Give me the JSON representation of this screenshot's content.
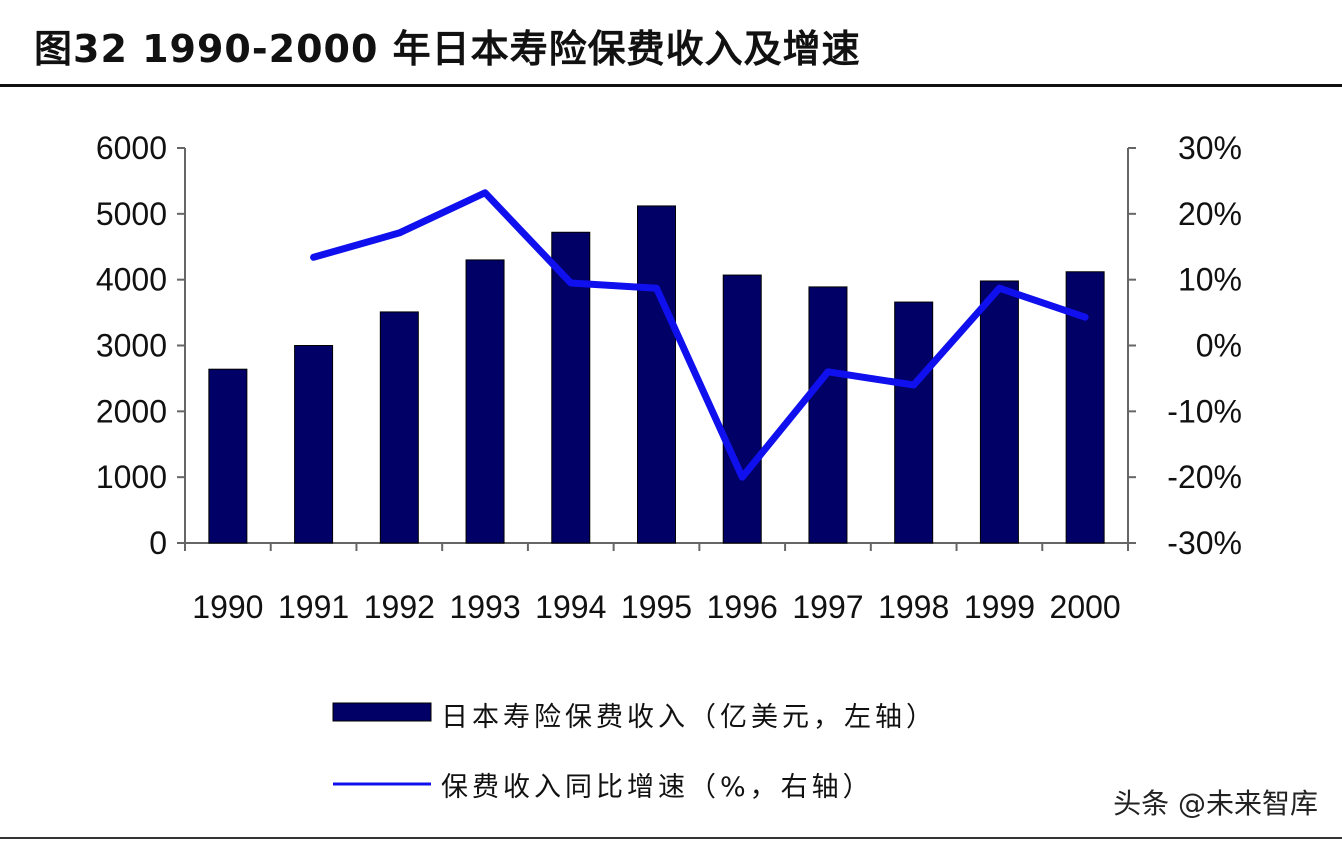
{
  "title": "图32 1990-2000 年日本寿险保费收入及增速",
  "watermark": "头条 @未来智库",
  "chart_data": {
    "type": "bar",
    "title": "图32 1990-2000 年日本寿险保费收入及增速",
    "categories": [
      "1990",
      "1991",
      "1992",
      "1993",
      "1994",
      "1995",
      "1996",
      "1997",
      "1998",
      "1999",
      "2000"
    ],
    "series": [
      {
        "name": "日本寿险保费收入（亿美元，左轴）",
        "type": "bar",
        "axis": "left",
        "color": "#000066",
        "values": [
          2640,
          3000,
          3510,
          4300,
          4720,
          5120,
          4070,
          3890,
          3660,
          3980,
          4120
        ]
      },
      {
        "name": "保费收入同比增速（%，右轴）",
        "type": "line",
        "axis": "right",
        "color": "#1010ee",
        "values": [
          null,
          13.4,
          17.1,
          23.2,
          9.5,
          8.7,
          -20.0,
          -4.0,
          -6.0,
          8.7,
          4.3
        ]
      }
    ],
    "left_axis": {
      "ylim": [
        0,
        6000
      ],
      "ticks": [
        "0",
        "1000",
        "2000",
        "3000",
        "4000",
        "5000",
        "6000"
      ]
    },
    "right_axis": {
      "ylim": [
        -30,
        30
      ],
      "ticks": [
        "-30%",
        "-20%",
        "-10%",
        "0%",
        "10%",
        "20%",
        "30%"
      ]
    },
    "grid": false,
    "legend": "bottom"
  }
}
